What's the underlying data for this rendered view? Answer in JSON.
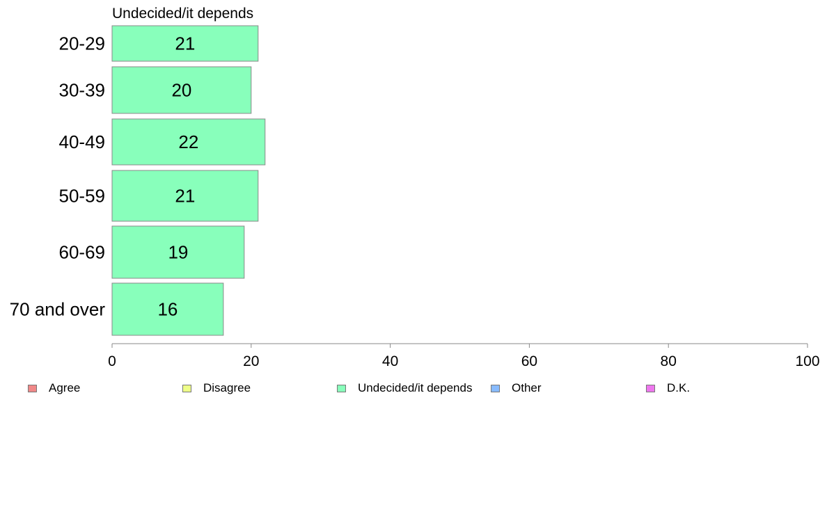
{
  "chart_data": {
    "type": "bar",
    "orientation": "horizontal",
    "title": "Undecided/it depends",
    "categories": [
      "20-29",
      "30-39",
      "40-49",
      "50-59",
      "60-69",
      "70 and over"
    ],
    "series": [
      {
        "name": "Undecided/it depends",
        "values": [
          21,
          20,
          22,
          21,
          19,
          16
        ],
        "color": "#88ffbb"
      }
    ],
    "data_labels": [
      "21",
      "20",
      "22",
      "21",
      "19",
      "16"
    ],
    "xlim": [
      0,
      100
    ],
    "x_ticks": [
      0,
      20,
      40,
      60,
      80,
      100
    ],
    "x_tick_labels": [
      "0",
      "20",
      "40",
      "60",
      "80",
      "100"
    ],
    "grid": false,
    "legend_position": "bottom",
    "legend": [
      {
        "label": "Agree",
        "color": "#f08888"
      },
      {
        "label": "Disagree",
        "color": "#eeff88"
      },
      {
        "label": "Undecided/it depends",
        "color": "#88ffbb"
      },
      {
        "label": "Other",
        "color": "#88bbff"
      },
      {
        "label": "D.K.",
        "color": "#ee77ee"
      }
    ]
  }
}
